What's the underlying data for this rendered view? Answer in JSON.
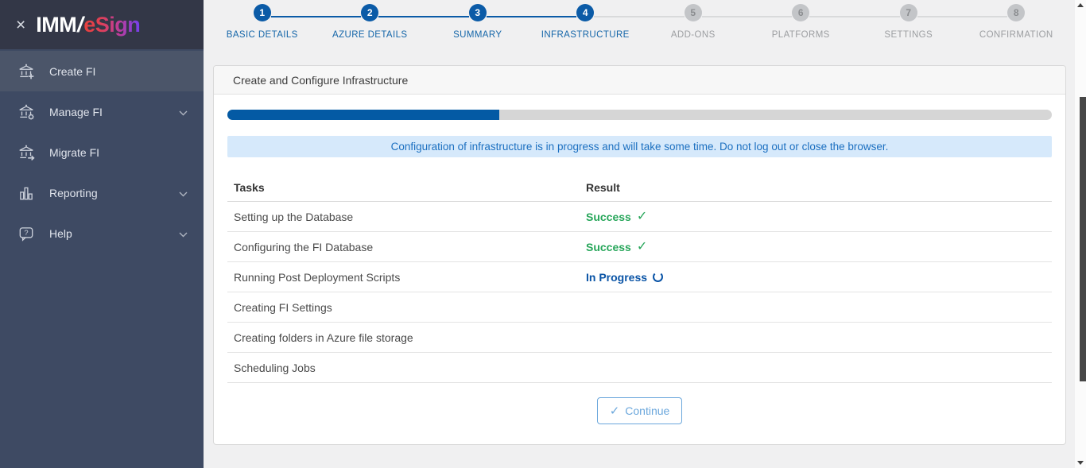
{
  "sidebar": {
    "logo": {
      "imm": "IMM",
      "slash": "/",
      "esign": "eSign"
    },
    "items": [
      {
        "label": "Create FI",
        "icon": "bank-plus-icon",
        "active": true,
        "expandable": false
      },
      {
        "label": "Manage FI",
        "icon": "bank-gear-icon",
        "active": false,
        "expandable": true
      },
      {
        "label": "Migrate FI",
        "icon": "bank-arrow-icon",
        "active": false,
        "expandable": false
      },
      {
        "label": "Reporting",
        "icon": "bar-chart-icon",
        "active": false,
        "expandable": true
      },
      {
        "label": "Help",
        "icon": "help-bubble-icon",
        "active": false,
        "expandable": true
      }
    ]
  },
  "stepper": {
    "steps": [
      {
        "number": "1",
        "label": "BASIC DETAILS",
        "state": "done"
      },
      {
        "number": "2",
        "label": "AZURE DETAILS",
        "state": "done"
      },
      {
        "number": "3",
        "label": "SUMMARY",
        "state": "done"
      },
      {
        "number": "4",
        "label": "INFRASTRUCTURE",
        "state": "current"
      },
      {
        "number": "5",
        "label": "ADD-ONS",
        "state": "upcoming"
      },
      {
        "number": "6",
        "label": "PLATFORMS",
        "state": "upcoming"
      },
      {
        "number": "7",
        "label": "SETTINGS",
        "state": "upcoming"
      },
      {
        "number": "8",
        "label": "CONFIRMATION",
        "state": "upcoming"
      }
    ]
  },
  "main": {
    "card_title": "Create and Configure Infrastructure",
    "progress_percent": 33,
    "banner_text": "Configuration of infrastructure is in progress and will take some time. Do not log out or close the browser.",
    "table": {
      "headers": {
        "tasks": "Tasks",
        "result": "Result"
      },
      "rows": [
        {
          "task": "Setting up the Database",
          "result": "Success",
          "status": "success"
        },
        {
          "task": "Configuring the FI Database",
          "result": "Success",
          "status": "success"
        },
        {
          "task": "Running Post Deployment Scripts",
          "result": "In Progress",
          "status": "in-progress"
        },
        {
          "task": "Creating FI Settings",
          "result": "",
          "status": "pending"
        },
        {
          "task": "Creating folders in Azure file storage",
          "result": "",
          "status": "pending"
        },
        {
          "task": "Scheduling Jobs",
          "result": "",
          "status": "pending"
        }
      ]
    },
    "continue_button": "Continue"
  },
  "colors": {
    "accent_blue": "#0b5ba7",
    "progress_fill": "#045aa4",
    "success_green": "#27a65a",
    "in_progress_blue": "#0a54a6",
    "banner_bg": "#d6e9fb",
    "banner_text": "#1b6fc0",
    "sidebar_bg": "#3e4a63",
    "sidebar_header_bg": "#333747",
    "logo_gradient_start": "#e8413c",
    "logo_gradient_end": "#7440ee",
    "continue_button_border": "#6ba7dc"
  }
}
